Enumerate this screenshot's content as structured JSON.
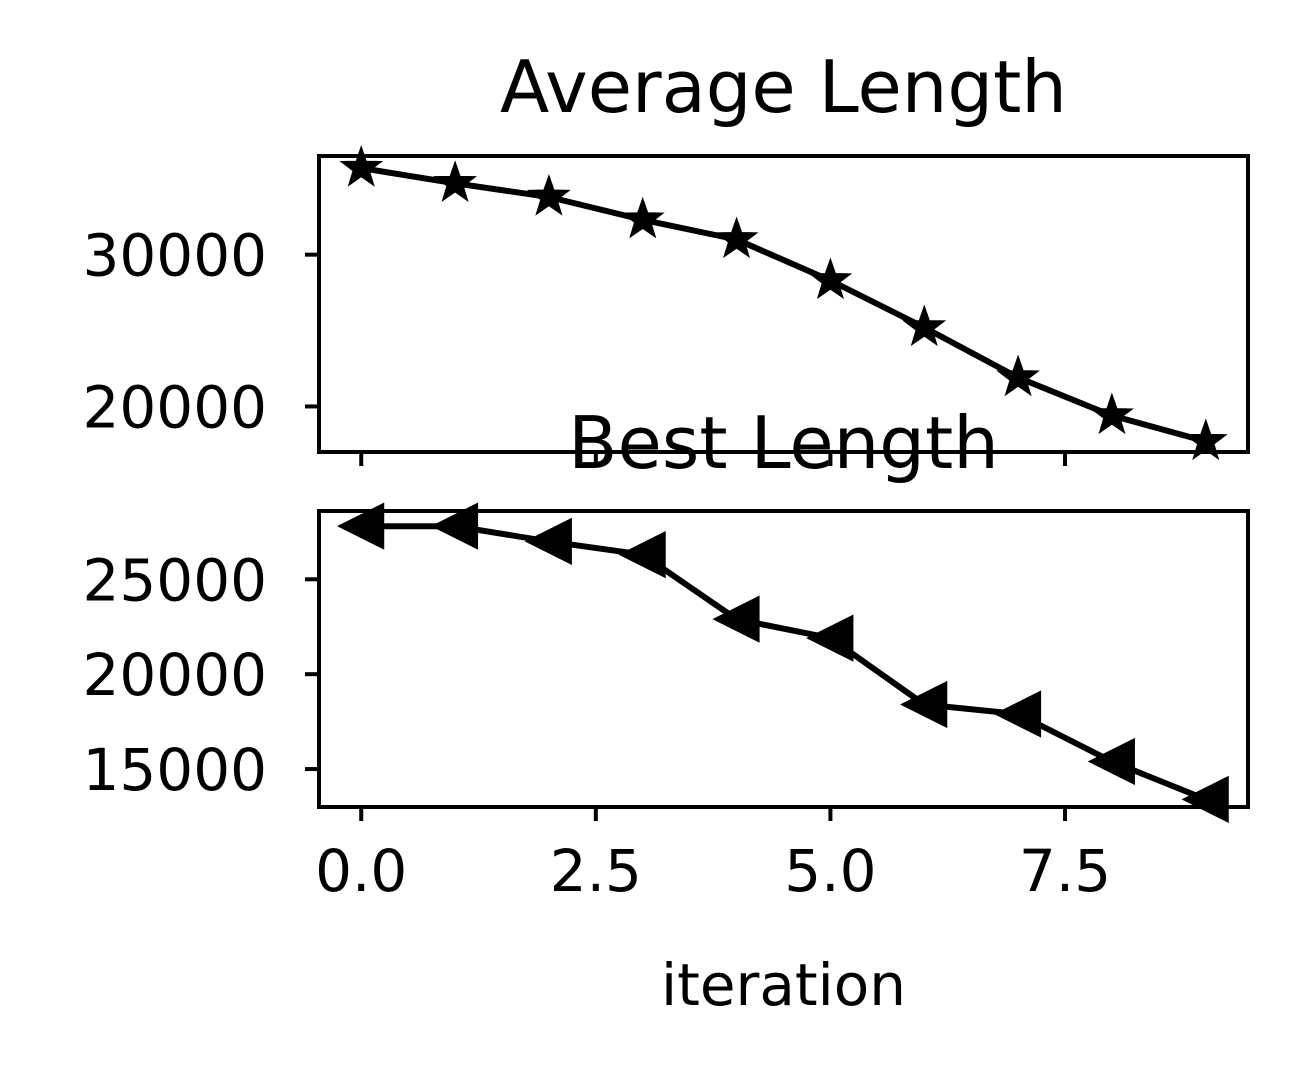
{
  "chart_data": [
    {
      "type": "line",
      "title": "Average Length",
      "xlabel": "",
      "ylabel": "",
      "xlim": [
        -0.45,
        9.45
      ],
      "ylim": [
        17000,
        36500
      ],
      "xticks": [
        0.0,
        2.5,
        5.0,
        7.5
      ],
      "xtick_labels": [
        "0.0",
        "2.5",
        "5.0",
        "7.5"
      ],
      "yticks": [
        20000,
        30000
      ],
      "ytick_labels": [
        "20000",
        "30000"
      ],
      "grid": false,
      "marker": "star",
      "color": "#000000",
      "series": [
        {
          "x": [
            0,
            1,
            2,
            3,
            4,
            5,
            6,
            7,
            8,
            9
          ],
          "values": [
            35700,
            34700,
            33800,
            32300,
            31000,
            28300,
            25200,
            21900,
            19400,
            17700
          ]
        }
      ]
    },
    {
      "type": "line",
      "title": "Best Length",
      "xlabel": "iteration",
      "ylabel": "",
      "xlim": [
        -0.45,
        9.45
      ],
      "ylim": [
        13000,
        28600
      ],
      "xticks": [
        0.0,
        2.5,
        5.0,
        7.5
      ],
      "xtick_labels": [
        "0.0",
        "2.5",
        "5.0",
        "7.5"
      ],
      "yticks": [
        15000,
        20000,
        25000
      ],
      "ytick_labels": [
        "15000",
        "20000",
        "25000"
      ],
      "grid": false,
      "marker": "triangle-left",
      "color": "#000000",
      "series": [
        {
          "x": [
            0,
            1,
            2,
            3,
            4,
            5,
            6,
            7,
            8,
            9
          ],
          "values": [
            27800,
            27800,
            27000,
            26300,
            22900,
            21900,
            18400,
            17900,
            15400,
            13400
          ]
        }
      ]
    }
  ]
}
